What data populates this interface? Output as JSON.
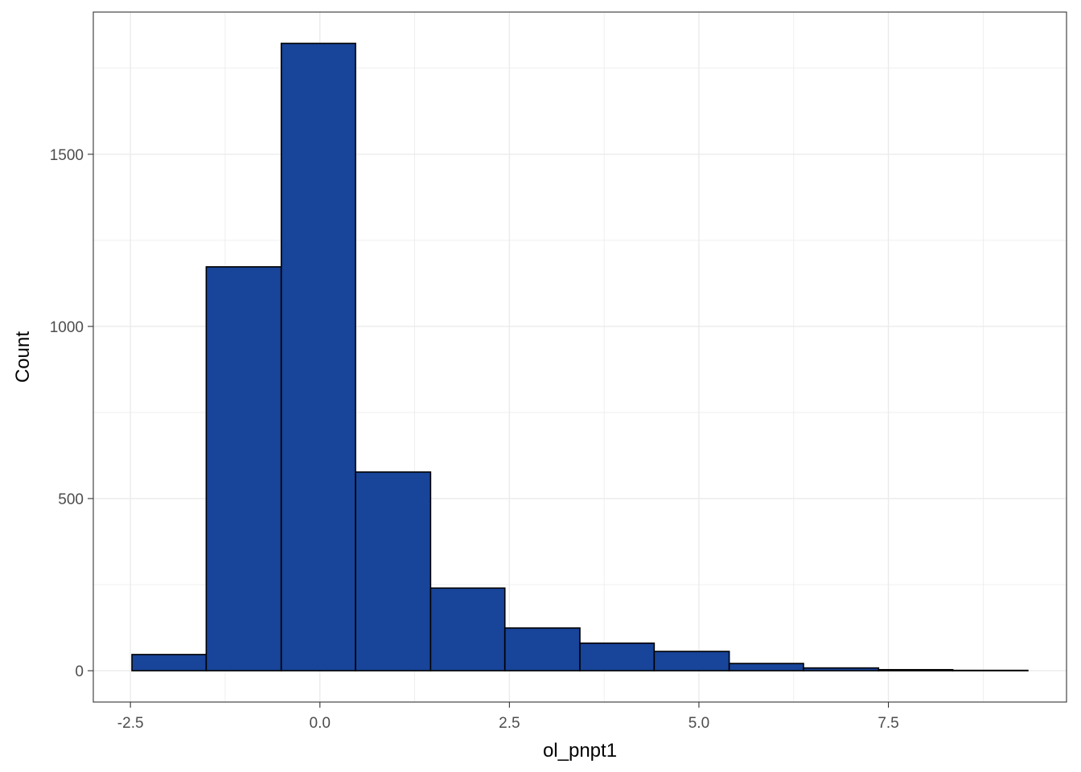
{
  "chart_data": {
    "type": "bar",
    "subtype": "histogram",
    "xlabel": "ol_pnpt1",
    "ylabel": "Count",
    "bin_width": 0.985,
    "bins": [
      {
        "x_start": -2.48,
        "x_end": -1.5,
        "count": 47
      },
      {
        "x_start": -1.5,
        "x_end": -0.51,
        "count": 1173
      },
      {
        "x_start": -0.51,
        "x_end": 0.47,
        "count": 1822
      },
      {
        "x_start": 0.47,
        "x_end": 1.46,
        "count": 577
      },
      {
        "x_start": 1.46,
        "x_end": 2.44,
        "count": 240
      },
      {
        "x_start": 2.44,
        "x_end": 3.43,
        "count": 124
      },
      {
        "x_start": 3.43,
        "x_end": 4.41,
        "count": 80
      },
      {
        "x_start": 4.41,
        "x_end": 5.4,
        "count": 56
      },
      {
        "x_start": 5.4,
        "x_end": 6.38,
        "count": 21
      },
      {
        "x_start": 6.38,
        "x_end": 7.37,
        "count": 8
      },
      {
        "x_start": 7.37,
        "x_end": 8.35,
        "count": 3
      },
      {
        "x_start": 8.35,
        "x_end": 9.34,
        "count": 1
      }
    ],
    "xlim": [
      -2.99,
      9.85
    ],
    "ylim": [
      -91,
      1913
    ],
    "x_ticks": [
      {
        "value": -2.5,
        "label": "-2.5"
      },
      {
        "value": 0.0,
        "label": "0.0"
      },
      {
        "value": 2.5,
        "label": "2.5"
      },
      {
        "value": 5.0,
        "label": "5.0"
      },
      {
        "value": 7.5,
        "label": "7.5"
      }
    ],
    "y_ticks": [
      {
        "value": 0,
        "label": "0"
      },
      {
        "value": 500,
        "label": "500"
      },
      {
        "value": 1000,
        "label": "1000"
      },
      {
        "value": 1500,
        "label": "1500"
      }
    ],
    "grid": true,
    "fill_color": "#184499",
    "edge_color": "#000000",
    "grid_color": "#ebebeb"
  }
}
